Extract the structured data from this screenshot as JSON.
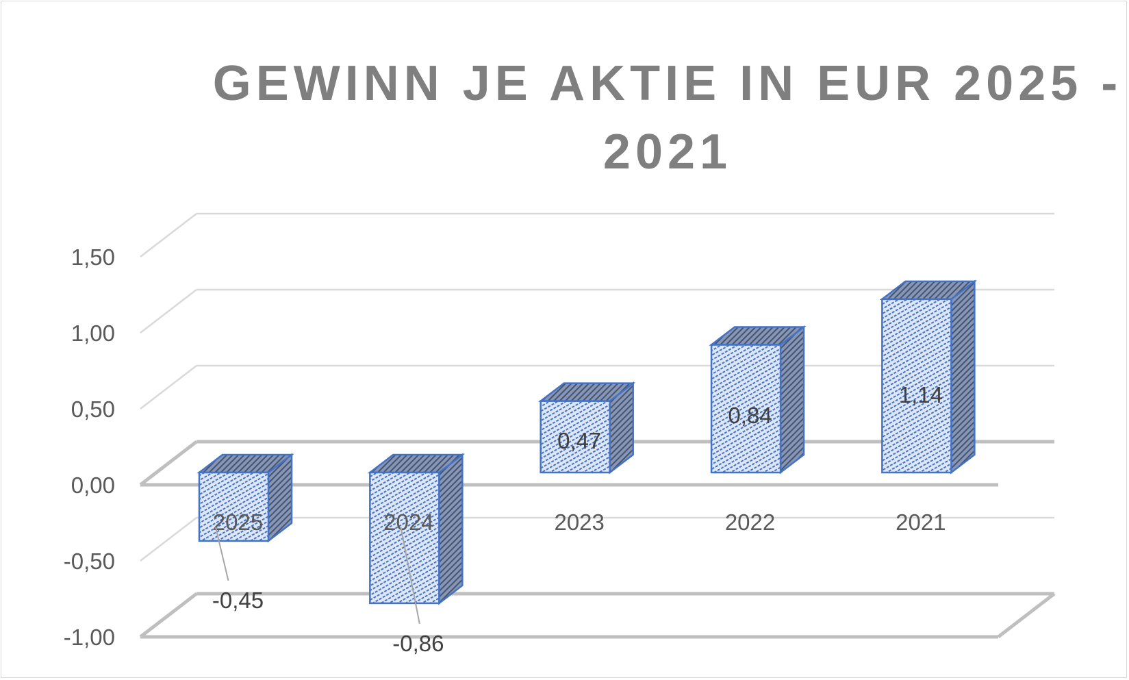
{
  "chart_data": {
    "type": "bar",
    "title": "GEWINN JE AKTIE IN EUR 2025 - 2021",
    "xlabel": "",
    "ylabel": "",
    "categories": [
      "2025",
      "2024",
      "2023",
      "2022",
      "2021"
    ],
    "values": [
      -0.45,
      -0.86,
      0.47,
      0.84,
      1.14
    ],
    "data_labels": [
      "-0,45",
      "-0,86",
      "0,47",
      "0,84",
      "1,14"
    ],
    "ylim": [
      -1.0,
      1.5
    ],
    "yticks": [
      -1.0,
      -0.5,
      0.0,
      0.5,
      1.0,
      1.5
    ],
    "ytick_labels": [
      "-1,00",
      "-0,50",
      "0,00",
      "0,50",
      "1,00",
      "1,50"
    ],
    "grid": true,
    "three_d": true,
    "legend": "none",
    "colors": {
      "bar_face": "#dde7f8",
      "bar_pattern": "#4472c4",
      "bar_edge": "#4472c4",
      "bar_side": "#6d7fa6",
      "gridline": "#d9d9d9",
      "floor_line": "#bfbfbf",
      "text": "#595959",
      "title": "#7f7f7f"
    }
  }
}
